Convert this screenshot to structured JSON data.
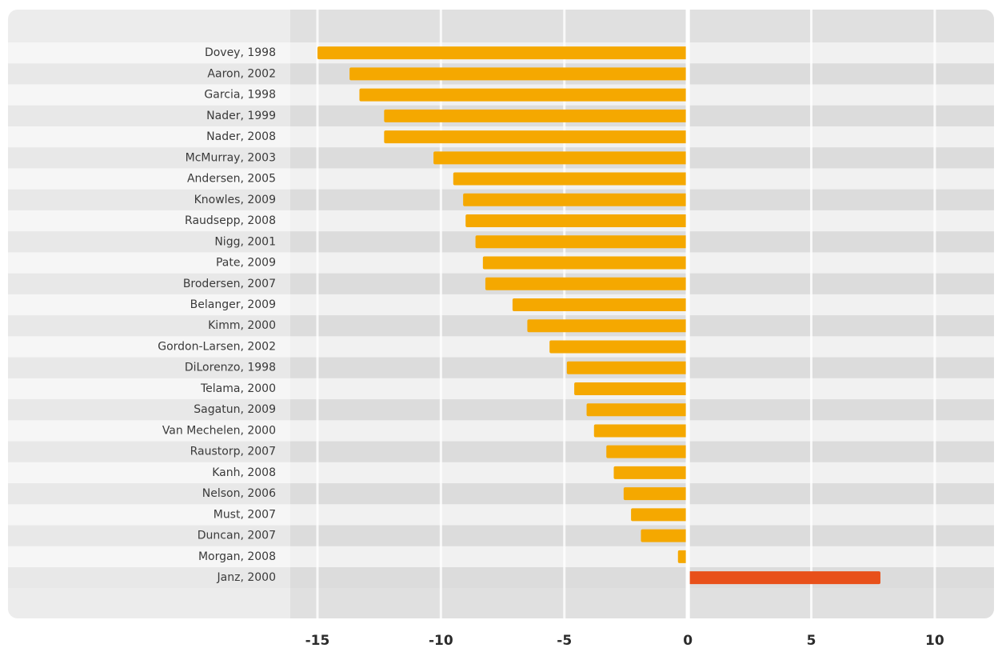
{
  "chart_data": {
    "type": "barh",
    "categories": [
      "Dovey, 1998",
      "Aaron, 2002",
      "Garcia, 1998",
      "Nader, 1999",
      "Nader, 2008",
      "McMurray, 2003",
      "Andersen, 2005",
      "Knowles, 2009",
      "Raudsepp, 2008",
      "Nigg, 2001",
      "Pate, 2009",
      "Brodersen, 2007",
      "Belanger, 2009",
      "Kimm, 2000",
      "Gordon-Larsen, 2002",
      "DiLorenzo, 1998",
      "Telama, 2000",
      "Sagatun, 2009",
      "Van Mechelen, 2000",
      "Raustorp, 2007",
      "Kanh, 2008",
      "Nelson, 2006",
      "Must, 2007",
      "Duncan, 2007",
      "Morgan, 2008",
      "Janz, 2000"
    ],
    "values": [
      -15.0,
      -13.7,
      -13.3,
      -12.3,
      -12.3,
      -10.3,
      -9.5,
      -9.1,
      -9.0,
      -8.6,
      -8.3,
      -8.2,
      -7.1,
      -6.5,
      -5.6,
      -4.9,
      -4.6,
      -4.1,
      -3.8,
      -3.3,
      -3.0,
      -2.6,
      -2.3,
      -1.9,
      -0.4,
      7.8
    ],
    "color": "#f5a800",
    "positive_color": "#e8501a",
    "xlim": [
      -16.1,
      12.4
    ],
    "xticks": [
      -15,
      -10,
      -5,
      0,
      5,
      10
    ],
    "grid": true
  }
}
